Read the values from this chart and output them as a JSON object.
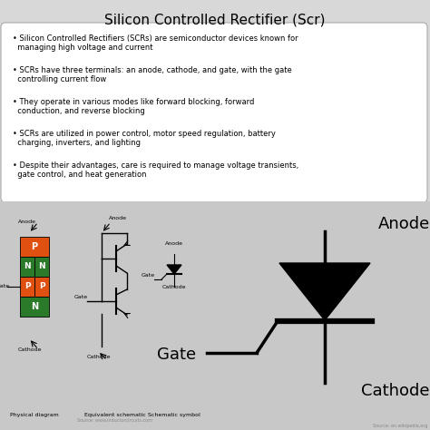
{
  "title": "Silicon Controlled Rectifier (Scr)",
  "title_fontsize": 11,
  "bg_color": "#d8d8d8",
  "bullet_box_color": "#ffffff",
  "bullets": [
    "Silicon Controlled Rectifiers (SCRs) are semiconductor devices known for\n  managing high voltage and current",
    "SCRs have three terminals: an anode, cathode, and gate, with the gate\n  controlling current flow",
    "They operate in various modes like forward blocking, forward\n  conduction, and reverse blocking",
    "SCRs are utilized in power control, motor speed regulation, battery\n  charging, inverters, and lighting",
    "Despite their advantages, care is required to manage voltage transients,\n  gate control, and heat generation"
  ],
  "bullet_fontsize": 6.0,
  "scr_label_anode": "Anode",
  "scr_label_gate": "Gate",
  "scr_label_cathode": "Cathode",
  "scr_label_fontsize": 13,
  "physical_label": "Physical diagram",
  "equiv_label": "Equivalent schematic",
  "schematic_label": "Schematic symbol",
  "source_text": "Source: www.inductorcircuits.com",
  "source_text2": "Source: en.wikipedia.org",
  "bottom_bg_color": "#c8c8c8"
}
